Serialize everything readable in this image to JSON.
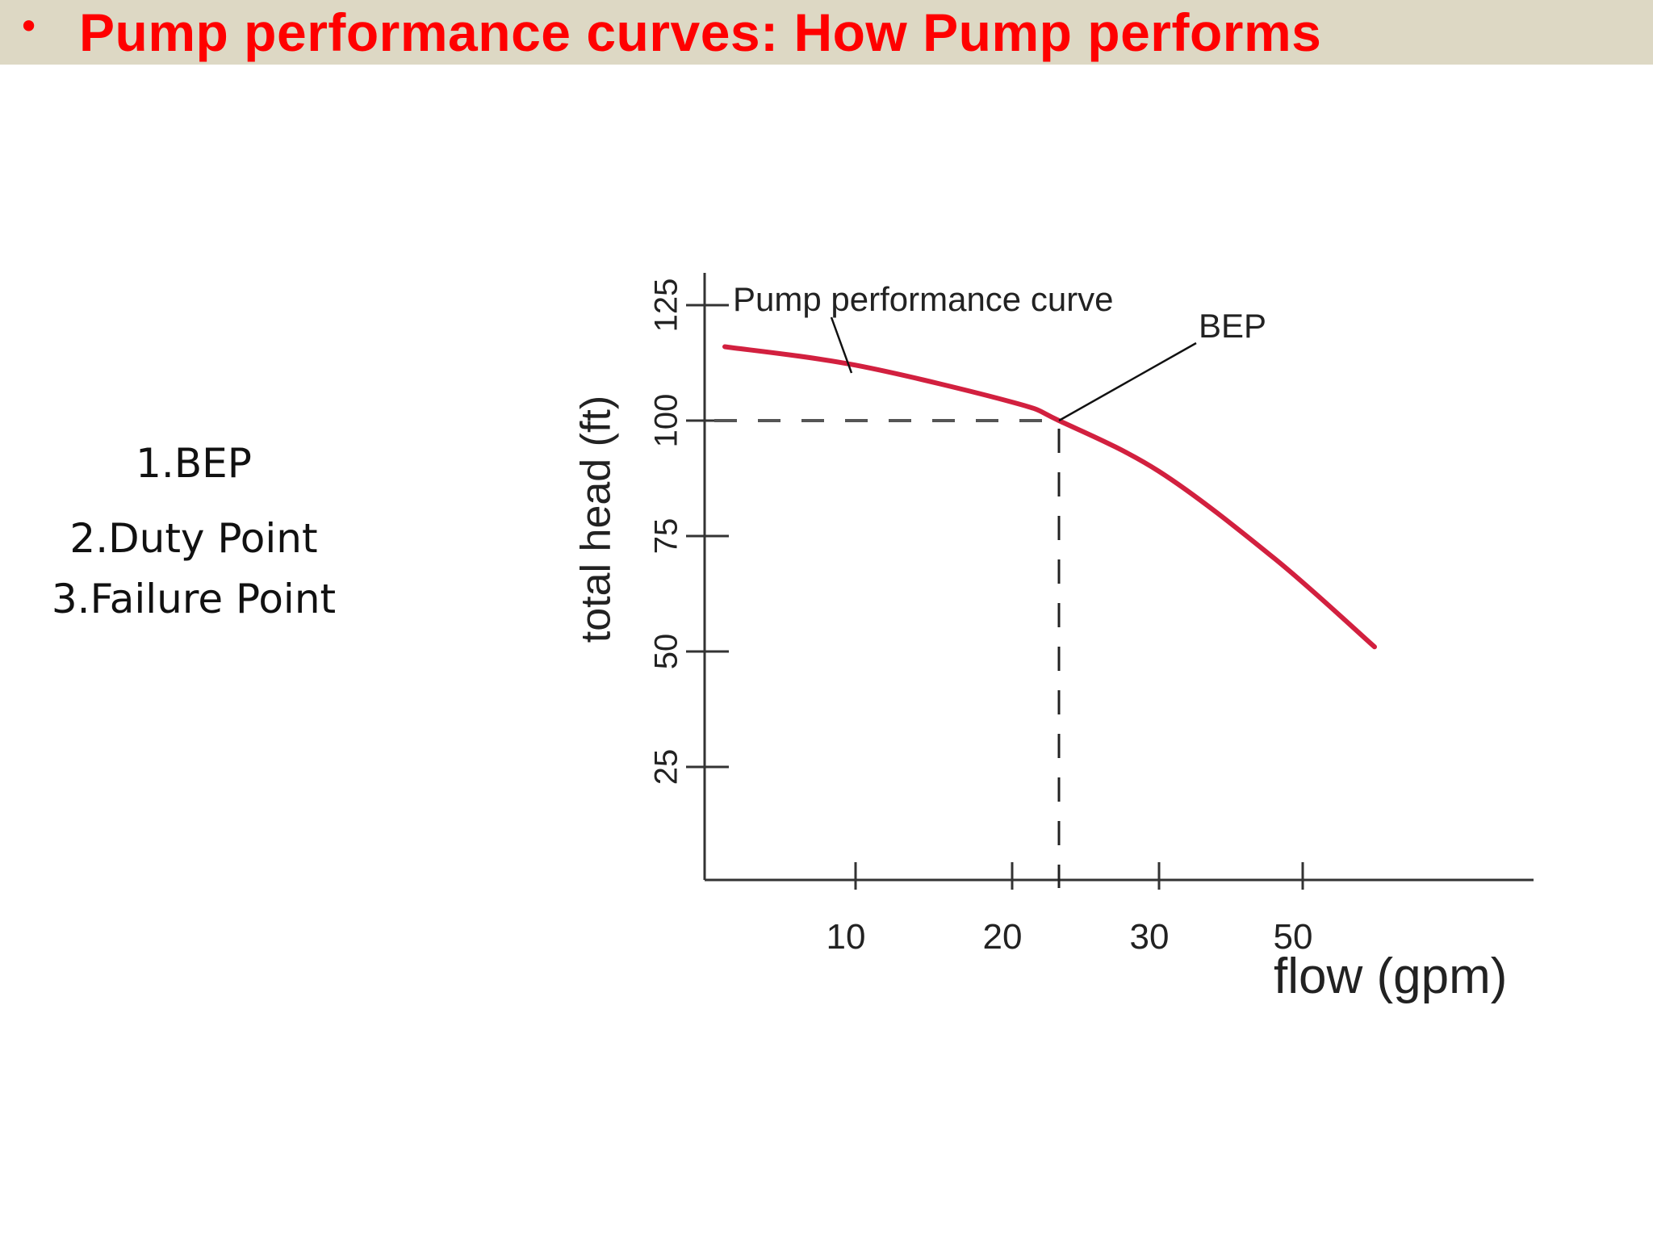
{
  "slide": {
    "bullet": "•",
    "title": "Pump performance curves: How Pump performs"
  },
  "points": [
    "1.BEP",
    "2.Duty Point",
    "3.Failure Point"
  ],
  "colors": {
    "title_bar": "#ddd8c4",
    "title_text": "#ff0000",
    "curve": "#d2203f",
    "axes": "#333333"
  },
  "chart_data": {
    "type": "line",
    "xlabel": "flow (gpm)",
    "ylabel": "total head (ft)",
    "x_ticks": [
      10,
      20,
      30,
      50
    ],
    "y_ticks": [
      25,
      50,
      75,
      100,
      125
    ],
    "grid": false,
    "series": [
      {
        "name": "Pump performance curve",
        "x": [
          1,
          10,
          20,
          23,
          30,
          40,
          45
        ],
        "y": [
          116,
          112,
          104,
          100,
          89,
          70,
          51
        ]
      }
    ],
    "annotations": [
      {
        "text": "BEP",
        "x": 23,
        "y": 100
      }
    ]
  }
}
